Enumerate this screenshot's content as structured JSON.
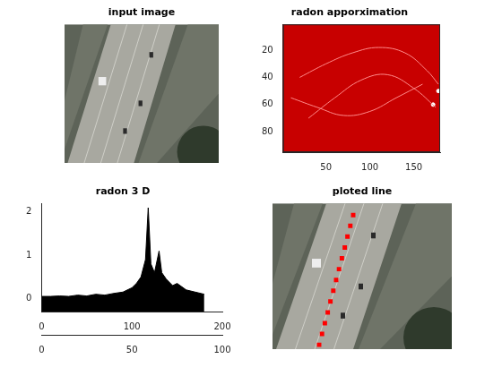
{
  "chart_data": [
    {
      "type": "image",
      "title": "input image",
      "xlim": [
        0,
        100
      ],
      "ylim": [
        0,
        100
      ],
      "tick_labels": false
    },
    {
      "type": "heatmap",
      "title": "radon apporximation",
      "color": "#c80000",
      "grid": false,
      "xlim": [
        1,
        180
      ],
      "ylim": [
        1,
        95
      ],
      "xticks": [
        50,
        100,
        150
      ],
      "yticks": [
        20,
        40,
        60,
        80
      ],
      "series": [
        {
          "type": "line",
          "color": "#ff8a8a",
          "x": [
            20,
            50,
            80,
            110,
            140,
            165,
            178
          ],
          "values": [
            40,
            30,
            22,
            18,
            22,
            35,
            45
          ]
        },
        {
          "type": "line",
          "color": "#ff8a8a",
          "x": [
            30,
            60,
            90,
            120,
            150,
            175
          ],
          "values": [
            70,
            55,
            42,
            38,
            48,
            62
          ]
        },
        {
          "type": "line",
          "color": "#ff8a8a",
          "x": [
            10,
            40,
            70,
            100,
            130,
            160
          ],
          "values": [
            55,
            62,
            68,
            65,
            55,
            45
          ]
        },
        {
          "type": "scatter",
          "color": "#ffffff",
          "x": [
            178,
            172
          ],
          "values": [
            50,
            60
          ]
        }
      ]
    },
    {
      "type": "surface",
      "title": "radon 3 D",
      "color": "#000000",
      "x": [
        0,
        10,
        20,
        30,
        40,
        50,
        60,
        70,
        80,
        90,
        100,
        105,
        110,
        115,
        118,
        121,
        125,
        128,
        130,
        133,
        138,
        145,
        150,
        160,
        170,
        180
      ],
      "values": [
        0.05,
        0.05,
        0.06,
        0.05,
        0.08,
        0.06,
        0.1,
        0.08,
        0.12,
        0.15,
        0.25,
        0.35,
        0.5,
        0.9,
        2.1,
        0.8,
        0.6,
        0.9,
        1.1,
        0.6,
        0.45,
        0.3,
        0.35,
        0.2,
        0.15,
        0.1
      ],
      "xlim": [
        0,
        200
      ],
      "xticks": [
        0,
        100,
        200
      ],
      "ylim": [
        0,
        100
      ],
      "yticks": [
        0,
        50,
        100
      ],
      "zlim": [
        -0.3,
        2.2
      ],
      "zticks": [
        0,
        1,
        2
      ],
      "grid": false
    },
    {
      "type": "image",
      "title": "ploted line",
      "xlim": [
        0,
        100
      ],
      "ylim": [
        0,
        100
      ],
      "tick_labels": false,
      "series": [
        {
          "color": "#ff0000",
          "marker": "square",
          "line_style": "dotted",
          "x": [
            26,
            27.6,
            29.2,
            30.8,
            32.3,
            33.9,
            35.5,
            37.1,
            38.7,
            40.3,
            41.8,
            43.4,
            45
          ],
          "values": [
            97,
            89.6,
            82.2,
            74.8,
            67.3,
            59.9,
            52.5,
            45.1,
            37.7,
            30.3,
            22.8,
            15.4,
            8
          ]
        }
      ]
    }
  ]
}
